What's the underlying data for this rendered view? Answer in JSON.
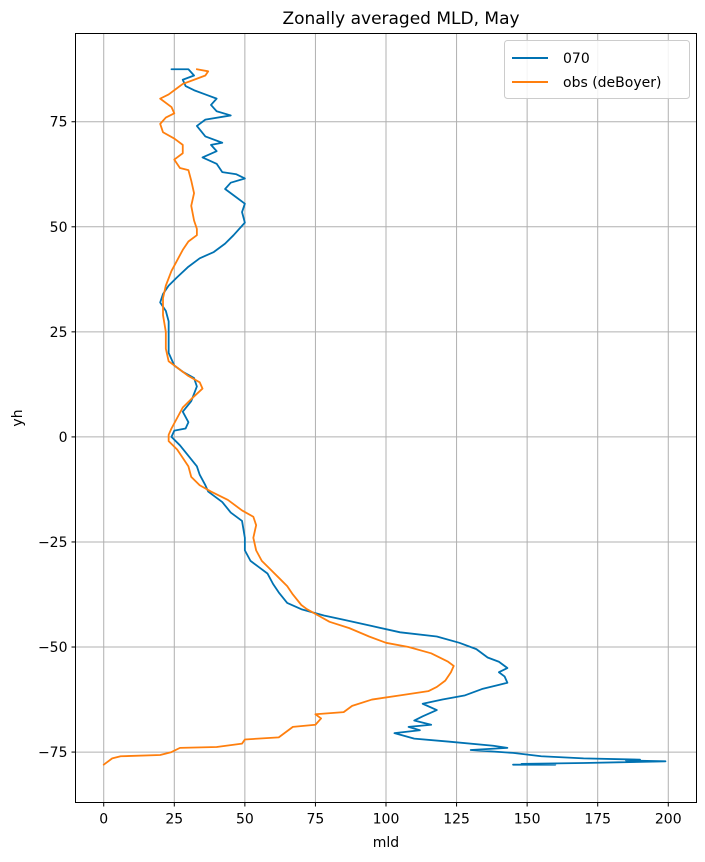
{
  "chart_data": {
    "type": "line",
    "title": "Zonally averaged MLD, May",
    "xlabel": "mld",
    "ylabel": "yh",
    "xlim": [
      -10,
      210
    ],
    "ylim": [
      -87,
      96
    ],
    "xticks": [
      0,
      25,
      50,
      75,
      100,
      125,
      150,
      175,
      200
    ],
    "yticks": [
      -75,
      -50,
      -25,
      0,
      25,
      50,
      75
    ],
    "xtick_labels": [
      "0",
      "25",
      "50",
      "75",
      "100",
      "125",
      "150",
      "175",
      "200"
    ],
    "ytick_labels": [
      "−75",
      "−50",
      "−25",
      "0",
      "25",
      "50",
      "75"
    ],
    "grid": true,
    "legend_position": "upper right",
    "series": [
      {
        "name": "070",
        "color": "#0072b2",
        "points": [
          [
            145,
            -78
          ],
          [
            160,
            -78
          ],
          [
            148,
            -77.8
          ],
          [
            170,
            -77.6
          ],
          [
            199,
            -77.2
          ],
          [
            185,
            -77
          ],
          [
            190,
            -76.8
          ],
          [
            170,
            -76.5
          ],
          [
            155,
            -76
          ],
          [
            145,
            -75.2
          ],
          [
            130,
            -74.5
          ],
          [
            143,
            -74
          ],
          [
            138,
            -73.5
          ],
          [
            122,
            -72.5
          ],
          [
            110,
            -71.8
          ],
          [
            103,
            -70.5
          ],
          [
            112,
            -69.8
          ],
          [
            108,
            -69
          ],
          [
            116,
            -68.5
          ],
          [
            110,
            -67.5
          ],
          [
            113,
            -66.5
          ],
          [
            118,
            -65
          ],
          [
            113,
            -63.5
          ],
          [
            120,
            -62.5
          ],
          [
            128,
            -61.5
          ],
          [
            134,
            -60
          ],
          [
            140,
            -59
          ],
          [
            143,
            -58.5
          ],
          [
            142,
            -57
          ],
          [
            140,
            -56
          ],
          [
            143,
            -55
          ],
          [
            140,
            -53.5
          ],
          [
            136,
            -52.5
          ],
          [
            132,
            -50.5
          ],
          [
            126,
            -49
          ],
          [
            118,
            -47.5
          ],
          [
            105,
            -46.5
          ],
          [
            95,
            -45
          ],
          [
            85,
            -43.5
          ],
          [
            78,
            -42.5
          ],
          [
            70,
            -41
          ],
          [
            65,
            -39.5
          ],
          [
            62,
            -37
          ],
          [
            60,
            -35
          ],
          [
            58,
            -32.5
          ],
          [
            55,
            -31
          ],
          [
            52,
            -29.5
          ],
          [
            50,
            -27
          ],
          [
            50,
            -24
          ],
          [
            49,
            -20
          ],
          [
            45,
            -18
          ],
          [
            42,
            -15.5
          ],
          [
            37,
            -13
          ],
          [
            36,
            -11.5
          ],
          [
            34,
            -9
          ],
          [
            33,
            -7
          ],
          [
            30,
            -4.5
          ],
          [
            27,
            -2
          ],
          [
            24,
            0
          ],
          [
            25,
            1.5
          ],
          [
            29,
            2
          ],
          [
            30,
            3.5
          ],
          [
            28,
            6
          ],
          [
            31,
            8.5
          ],
          [
            33,
            12
          ],
          [
            32,
            14
          ],
          [
            28,
            15.5
          ],
          [
            25,
            17
          ],
          [
            23,
            20
          ],
          [
            23,
            24
          ],
          [
            23,
            27.5
          ],
          [
            22,
            30
          ],
          [
            20,
            32
          ],
          [
            21,
            34
          ],
          [
            23,
            36
          ],
          [
            26,
            38
          ],
          [
            30,
            40.5
          ],
          [
            34,
            42.5
          ],
          [
            39,
            44
          ],
          [
            43,
            46
          ],
          [
            46,
            48
          ],
          [
            50,
            51
          ],
          [
            49,
            53.5
          ],
          [
            50,
            55.5
          ],
          [
            47,
            57
          ],
          [
            43,
            59
          ],
          [
            45,
            60.5
          ],
          [
            50,
            61.5
          ],
          [
            47,
            62.5
          ],
          [
            42,
            63
          ],
          [
            40,
            65
          ],
          [
            35,
            66.5
          ],
          [
            40,
            68
          ],
          [
            38,
            69.5
          ],
          [
            42,
            70
          ],
          [
            36,
            71.5
          ],
          [
            33,
            74
          ],
          [
            36,
            75.5
          ],
          [
            45,
            76.5
          ],
          [
            40,
            77.5
          ],
          [
            38,
            79
          ],
          [
            40,
            80.5
          ],
          [
            36,
            81.5
          ],
          [
            32,
            82.5
          ],
          [
            29,
            83.5
          ],
          [
            28,
            85
          ],
          [
            32,
            86
          ],
          [
            30,
            87.5
          ],
          [
            24,
            87.5
          ]
        ]
      },
      {
        "name": "obs (deBoyer)",
        "color": "#ff7f0e",
        "points": [
          [
            0,
            -78
          ],
          [
            1,
            -77.5
          ],
          [
            3,
            -76.5
          ],
          [
            6,
            -76
          ],
          [
            20,
            -75.7
          ],
          [
            24,
            -75
          ],
          [
            27,
            -74
          ],
          [
            40,
            -73.8
          ],
          [
            49,
            -73
          ],
          [
            50,
            -72
          ],
          [
            62,
            -71.5
          ],
          [
            67,
            -69
          ],
          [
            75,
            -68.5
          ],
          [
            77,
            -67
          ],
          [
            75,
            -66
          ],
          [
            85,
            -65.5
          ],
          [
            88,
            -64
          ],
          [
            95,
            -62.5
          ],
          [
            105,
            -61.5
          ],
          [
            115,
            -60.5
          ],
          [
            118,
            -59.5
          ],
          [
            121,
            -58
          ],
          [
            123,
            -56
          ],
          [
            124,
            -54.5
          ],
          [
            122,
            -53.5
          ],
          [
            116,
            -51.5
          ],
          [
            108,
            -50
          ],
          [
            100,
            -49
          ],
          [
            94,
            -47.5
          ],
          [
            87,
            -45.5
          ],
          [
            80,
            -44
          ],
          [
            76,
            -42.5
          ],
          [
            72,
            -41
          ],
          [
            70,
            -40
          ],
          [
            67,
            -37.5
          ],
          [
            65,
            -35.5
          ],
          [
            62,
            -33.5
          ],
          [
            59,
            -31.5
          ],
          [
            56,
            -29.5
          ],
          [
            54,
            -27
          ],
          [
            53,
            -24
          ],
          [
            54,
            -21
          ],
          [
            53,
            -19
          ],
          [
            49,
            -17.5
          ],
          [
            44,
            -15
          ],
          [
            38,
            -13
          ],
          [
            34,
            -11.5
          ],
          [
            31,
            -9.5
          ],
          [
            30,
            -7
          ],
          [
            28,
            -5
          ],
          [
            26,
            -3
          ],
          [
            23,
            -1
          ],
          [
            23,
            0.5
          ],
          [
            24,
            2
          ],
          [
            26,
            4.5
          ],
          [
            28,
            7
          ],
          [
            31,
            9
          ],
          [
            35,
            11.5
          ],
          [
            34,
            13
          ],
          [
            30,
            14.5
          ],
          [
            27,
            16
          ],
          [
            23,
            18
          ],
          [
            22,
            21
          ],
          [
            22,
            25
          ],
          [
            21,
            29
          ],
          [
            21,
            33
          ],
          [
            22,
            36
          ],
          [
            24,
            39.5
          ],
          [
            26,
            42
          ],
          [
            28,
            44.5
          ],
          [
            30,
            46.5
          ],
          [
            33,
            48
          ],
          [
            33,
            49.5
          ],
          [
            32,
            51.5
          ],
          [
            31,
            55
          ],
          [
            32,
            58
          ],
          [
            31,
            61
          ],
          [
            30,
            63.5
          ],
          [
            27,
            64
          ],
          [
            25,
            66
          ],
          [
            28,
            67.5
          ],
          [
            28,
            69.5
          ],
          [
            25,
            71
          ],
          [
            21,
            72.5
          ],
          [
            20,
            74.5
          ],
          [
            22,
            76
          ],
          [
            25,
            77
          ],
          [
            24,
            78.5
          ],
          [
            20,
            80.5
          ],
          [
            23,
            81.5
          ],
          [
            26,
            83
          ],
          [
            28,
            84
          ],
          [
            32,
            85
          ],
          [
            36,
            86
          ],
          [
            37,
            87
          ],
          [
            33,
            87.5
          ]
        ]
      }
    ]
  }
}
